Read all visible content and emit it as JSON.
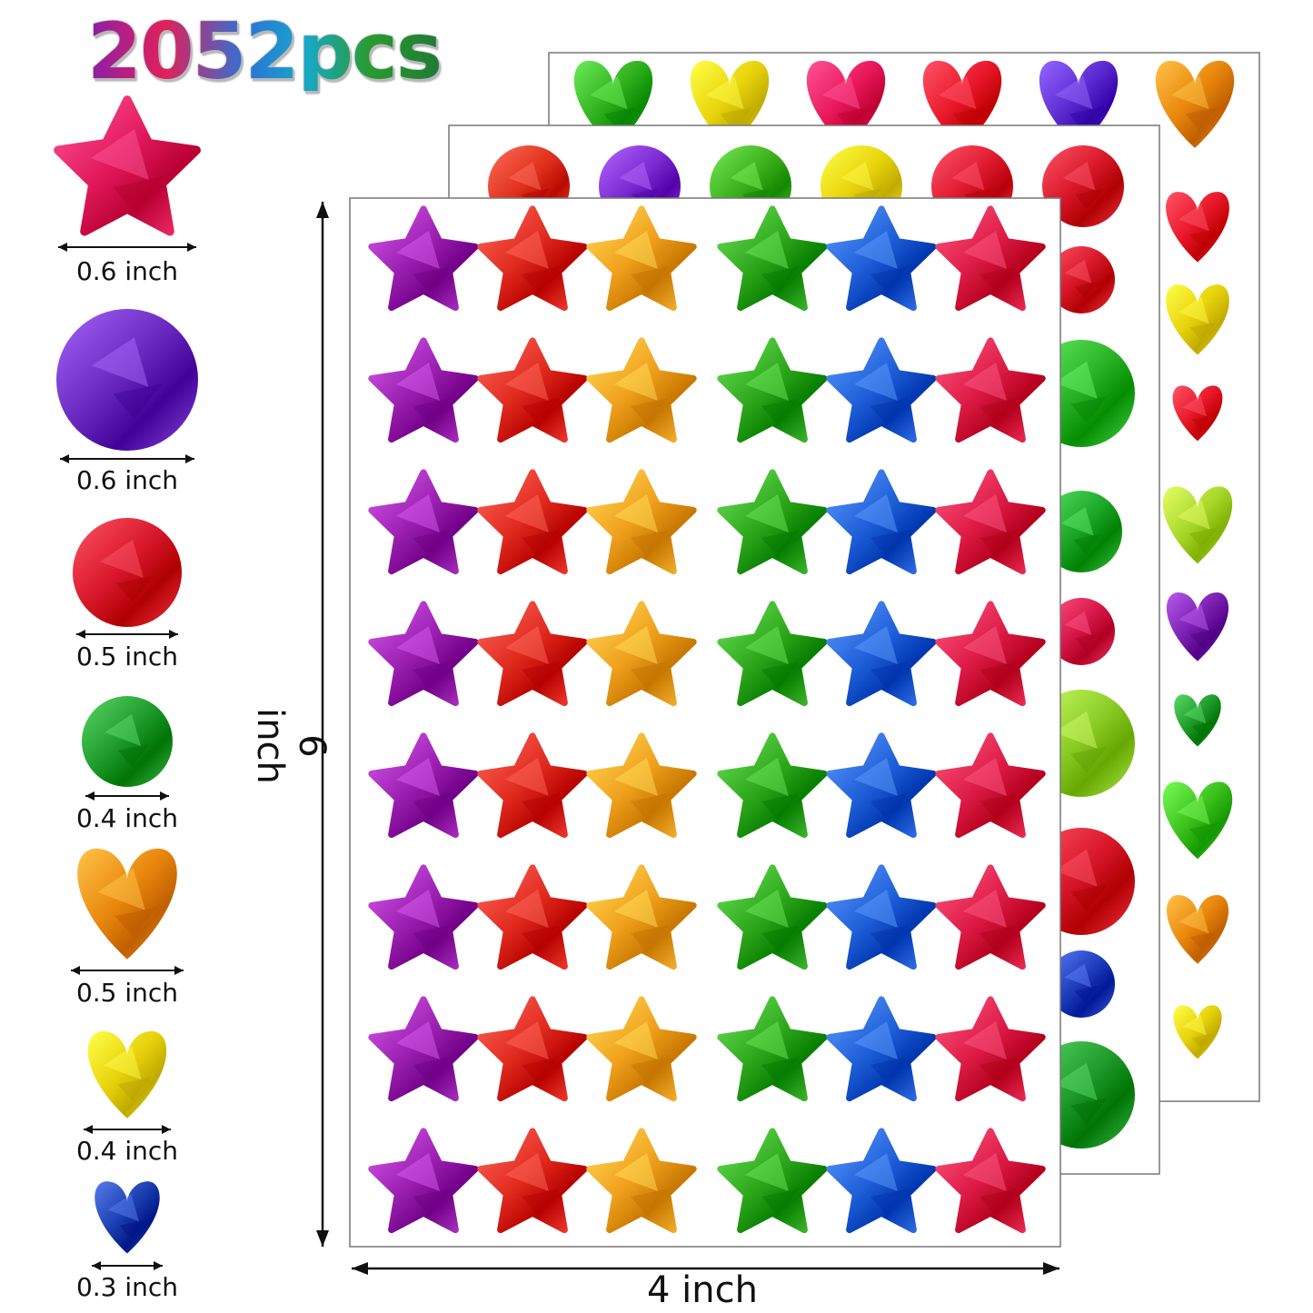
{
  "headline": "2052pcs",
  "sizes": [
    {
      "shape": "star",
      "label": "0.6 inch",
      "color": "#e0185a"
    },
    {
      "shape": "circle",
      "label": "0.6 inch",
      "color": "#6a2ac0"
    },
    {
      "shape": "circle",
      "label": "0.5 inch",
      "color": "#d8182a"
    },
    {
      "shape": "circle",
      "label": "0.4 inch",
      "color": "#1f9c2c"
    },
    {
      "shape": "heart",
      "label": "0.5 inch",
      "color": "#e8870c"
    },
    {
      "shape": "heart",
      "label": "0.4 inch",
      "color": "#e8d20c"
    },
    {
      "shape": "heart",
      "label": "0.3 inch",
      "color": "#1b3fb0"
    }
  ],
  "dimensions": {
    "height": "6 inch",
    "width": "4 inch"
  },
  "sheets": {
    "star_colors": [
      "#9a1fb0",
      "#e02a1e",
      "#f0a01c",
      "#2fa71c",
      "#1f5fd8",
      "#dc1b45"
    ],
    "circle_colors": [
      "#e0321e",
      "#7a2ad0",
      "#3cb01c",
      "#e8d40c",
      "#e01a30",
      "#d8182a"
    ],
    "heart_colors": [
      "#2fb01c",
      "#e8d40c",
      "#e8185a",
      "#e8182a",
      "#5a2ad0",
      "#e8870c"
    ],
    "right_circle_colors": [
      "#d8182a",
      "#2db52a",
      "#1fa92a",
      "#d8184a",
      "#8fcf2a",
      "#d8182a",
      "#2040c0",
      "#1f9c2c",
      "#d8182a"
    ],
    "right_heart_colors": [
      "#e8182a",
      "#e8d20c",
      "#e8182a",
      "#a8d82a",
      "#7a1fb0",
      "#1f9c2c",
      "#3cc01c",
      "#e8870c",
      "#e8d20c"
    ]
  }
}
